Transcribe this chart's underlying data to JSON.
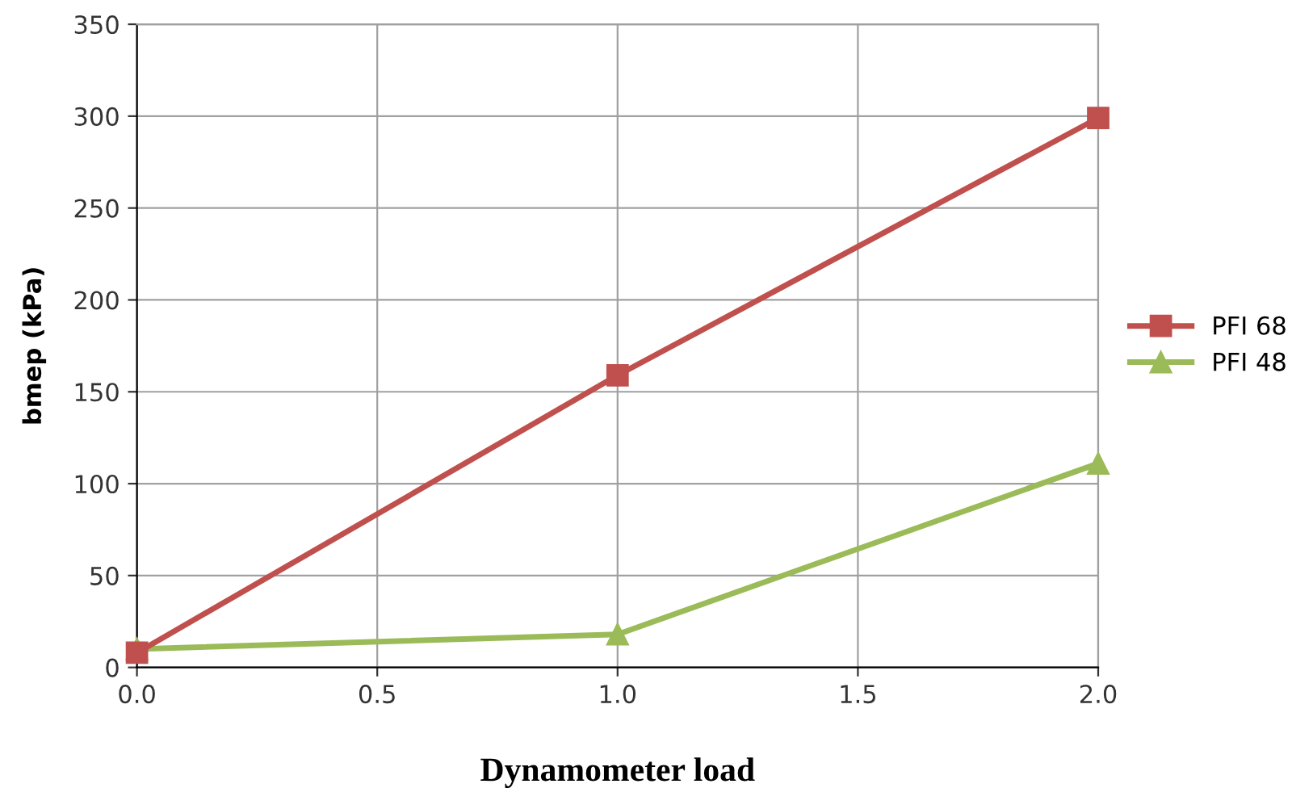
{
  "chart_data": {
    "type": "line",
    "xlabel": "Dynamometer load",
    "ylabel": "bmep (kPa)",
    "x": [
      0,
      1,
      2
    ],
    "series": [
      {
        "name": "PFI 68",
        "color": "#c0504d",
        "marker": "square",
        "values": [
          8,
          159,
          299
        ]
      },
      {
        "name": "PFI 48",
        "color": "#9bbb59",
        "marker": "triangle",
        "values": [
          10,
          18,
          111
        ]
      }
    ],
    "xlim": [
      0,
      2
    ],
    "xticks": [
      {
        "value": 0,
        "label": "0.0"
      },
      {
        "value": 0.5,
        "label": "0.5"
      },
      {
        "value": 1,
        "label": "1.0"
      },
      {
        "value": 1.5,
        "label": "1.5"
      },
      {
        "value": 2,
        "label": "2.0"
      }
    ],
    "ylim": [
      0,
      350
    ],
    "yticks": [
      0,
      50,
      100,
      150,
      200,
      250,
      300,
      350
    ],
    "grid": true,
    "legend": "right",
    "line_style": "solid"
  }
}
